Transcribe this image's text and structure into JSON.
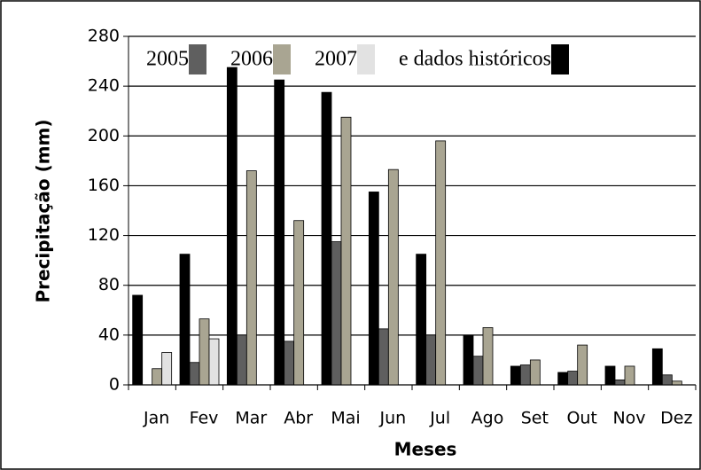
{
  "chart_data": {
    "type": "bar",
    "x_label": "Meses",
    "y_label": "Precipitação (mm)",
    "categories": [
      "Jan",
      "Fev",
      "Mar",
      "Abr",
      "Mai",
      "Jun",
      "Jul",
      "Ago",
      "Set",
      "Out",
      "Nov",
      "Dez"
    ],
    "series": [
      {
        "name": "e dados históricos",
        "color": "#000000",
        "values": [
          72,
          105,
          255,
          245,
          235,
          155,
          105,
          40,
          15,
          10,
          15,
          29
        ]
      },
      {
        "name": "2005",
        "color": "#5f5f5f",
        "values": [
          0,
          18,
          40,
          35,
          115,
          45,
          40,
          23,
          16,
          11,
          4,
          8
        ]
      },
      {
        "name": "2006",
        "color": "#a9a592",
        "values": [
          13,
          53,
          172,
          132,
          215,
          173,
          196,
          46,
          20,
          32,
          15,
          3
        ]
      },
      {
        "name": "2007",
        "color": "#e2e2e2",
        "values": [
          26,
          37,
          0,
          0,
          0,
          0,
          0,
          0,
          0,
          0,
          0,
          0
        ]
      }
    ],
    "ylim": [
      0,
      280
    ],
    "yticks": [
      0,
      40,
      80,
      120,
      160,
      200,
      240,
      280
    ],
    "grid": true
  }
}
